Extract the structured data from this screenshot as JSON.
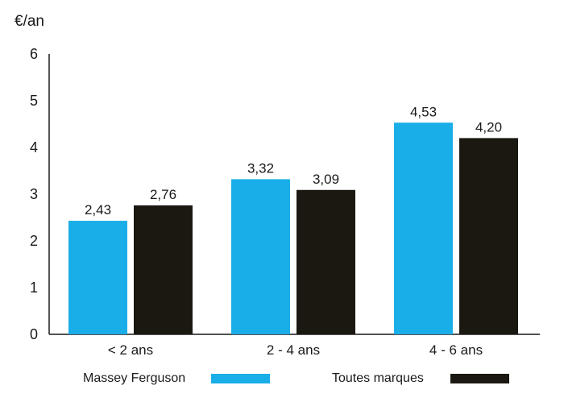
{
  "chart_data": {
    "type": "bar",
    "ylabel": "€/an",
    "ylim": [
      0,
      6
    ],
    "yticks": [
      "0",
      "1",
      "2",
      "3",
      "4",
      "5",
      "6"
    ],
    "categories": [
      "< 2 ans",
      "2 - 4 ans",
      "4 - 6 ans"
    ],
    "series": [
      {
        "name": "Massey Ferguson",
        "values": [
          2.43,
          3.32,
          4.53
        ],
        "labels": [
          "2,43",
          "3,32",
          "4,53"
        ],
        "color": "#1aaee8"
      },
      {
        "name": "Toutes marques",
        "values": [
          2.76,
          3.09,
          4.2
        ],
        "labels": [
          "2,76",
          "3,09",
          "4,20"
        ],
        "color": "#1a1811"
      }
    ],
    "grid": false,
    "legend": "bottom"
  }
}
